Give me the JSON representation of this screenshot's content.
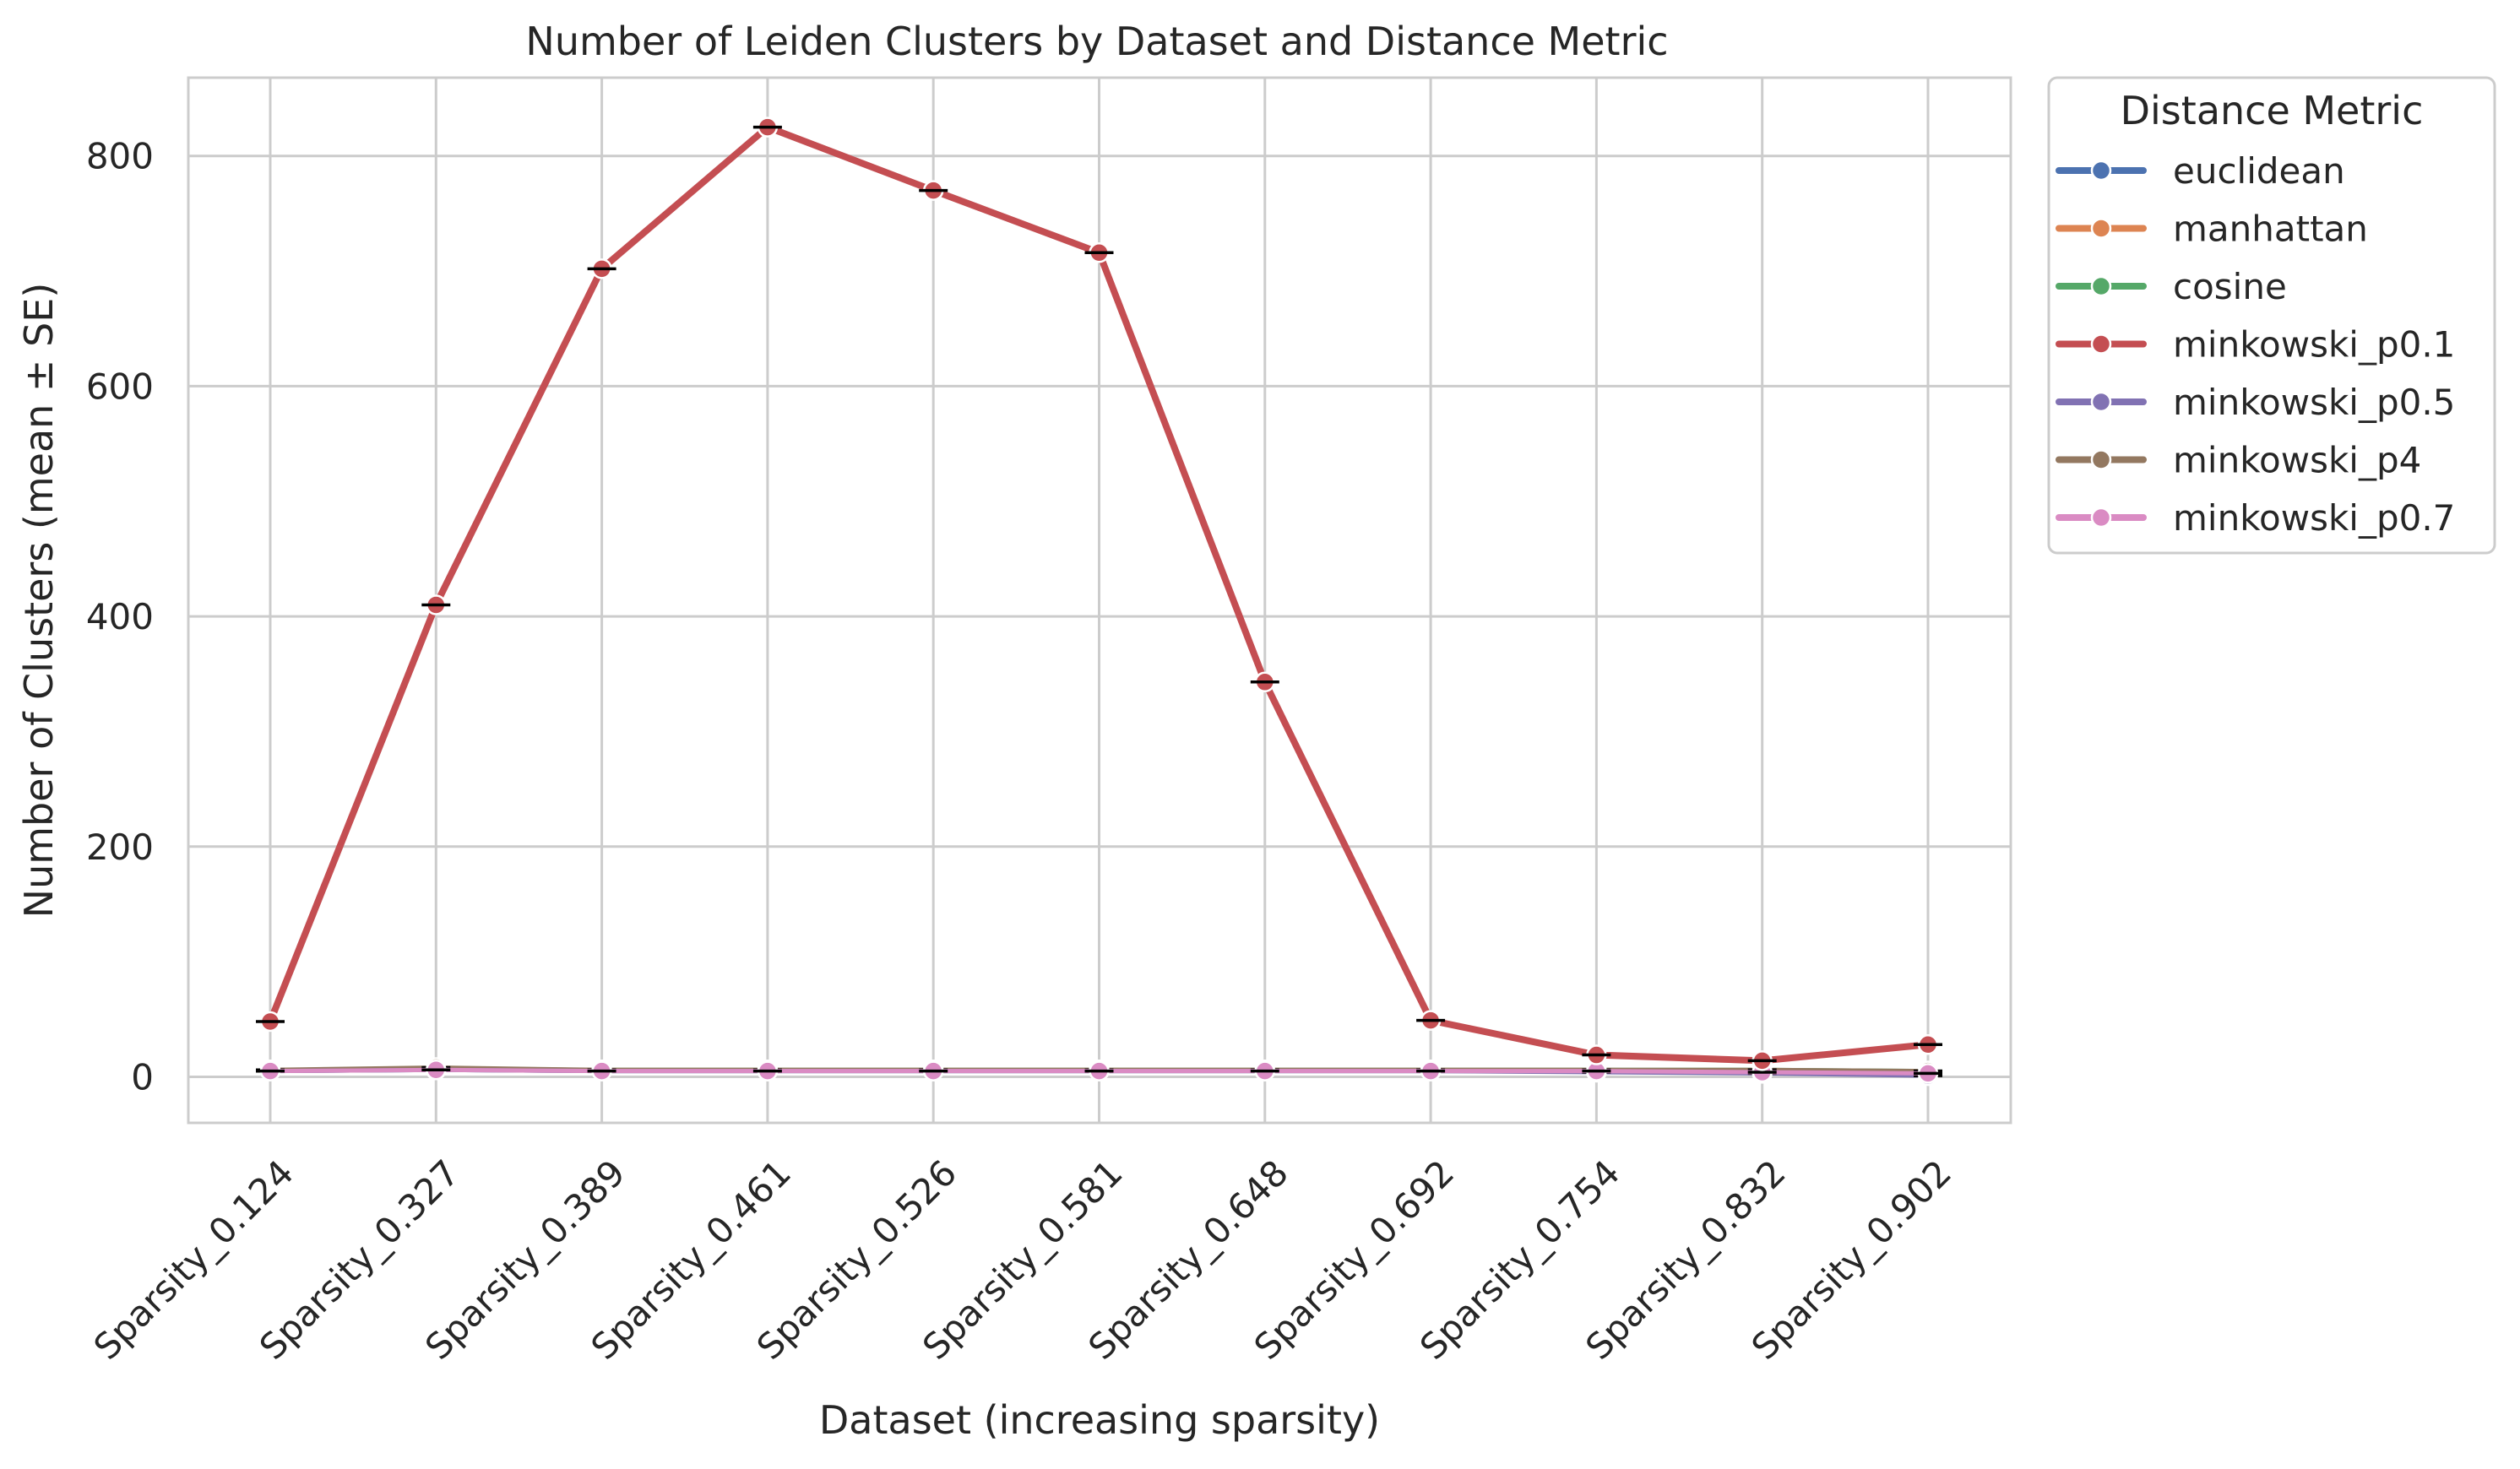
{
  "chart_data": {
    "type": "line",
    "title": "Number of Leiden Clusters by Dataset and Distance Metric",
    "xlabel": "Dataset (increasing sparsity)",
    "ylabel": "Number of Clusters (mean ± SE)",
    "categories": [
      "Sparsity_0.124",
      "Sparsity_0.327",
      "Sparsity_0.389",
      "Sparsity_0.461",
      "Sparsity_0.526",
      "Sparsity_0.581",
      "Sparsity_0.648",
      "Sparsity_0.692",
      "Sparsity_0.754",
      "Sparsity_0.832",
      "Sparsity_0.902"
    ],
    "ylim": [
      -40,
      868
    ],
    "yticks": [
      0,
      200,
      400,
      600,
      800
    ],
    "grid": true,
    "legend": {
      "title": "Distance Metric",
      "placement": "outside-right"
    },
    "series": [
      {
        "name": "euclidean",
        "color": "#4c72b0",
        "values": [
          5,
          6,
          5,
          5,
          5,
          5,
          5,
          5,
          5,
          4,
          3
        ]
      },
      {
        "name": "manhattan",
        "color": "#dd8452",
        "values": [
          6,
          7,
          6,
          6,
          6,
          6,
          6,
          6,
          6,
          5,
          4
        ]
      },
      {
        "name": "cosine",
        "color": "#55a868",
        "values": [
          6,
          7,
          6,
          6,
          6,
          6,
          6,
          6,
          6,
          6,
          5
        ]
      },
      {
        "name": "minkowski_p0.1",
        "color": "#c44e52",
        "values": [
          48,
          410,
          702,
          825,
          770,
          716,
          343,
          49,
          19,
          14,
          28
        ]
      },
      {
        "name": "minkowski_p0.5",
        "color": "#8172b3",
        "values": [
          5,
          6,
          5,
          5,
          5,
          5,
          5,
          5,
          4,
          3,
          1
        ]
      },
      {
        "name": "minkowski_p4",
        "color": "#937860",
        "values": [
          6,
          8,
          6,
          6,
          6,
          6,
          6,
          6,
          6,
          6,
          5
        ]
      },
      {
        "name": "minkowski_p0.7",
        "color": "#da8bc3",
        "values": [
          5,
          6,
          5,
          5,
          5,
          5,
          5,
          5,
          5,
          4,
          3
        ]
      }
    ]
  }
}
